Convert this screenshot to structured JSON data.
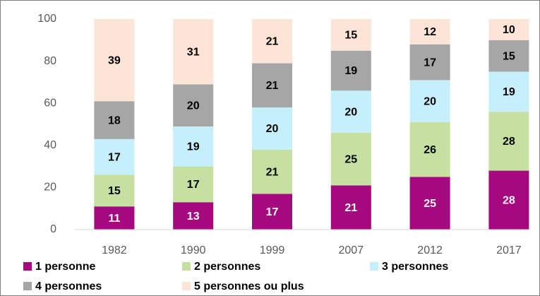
{
  "chart_data": {
    "type": "stacked_bar",
    "categories": [
      "1982",
      "1990",
      "1999",
      "2007",
      "2012",
      "2017"
    ],
    "series": [
      {
        "name": "1 personne",
        "color": "#a5087f",
        "values": [
          11,
          13,
          17,
          21,
          25,
          28
        ]
      },
      {
        "name": "2 personnes",
        "color": "#c5e0a0",
        "values": [
          15,
          17,
          21,
          25,
          26,
          28
        ]
      },
      {
        "name": "3 personnes",
        "color": "#c6effc",
        "values": [
          17,
          19,
          20,
          20,
          20,
          19
        ]
      },
      {
        "name": "4 personnes",
        "color": "#a6a6a6",
        "values": [
          18,
          20,
          21,
          19,
          17,
          15
        ]
      },
      {
        "name": "5 personnes ou plus",
        "color": "#fce4d6",
        "values": [
          39,
          31,
          21,
          15,
          12,
          10
        ]
      }
    ],
    "ylim": [
      0,
      100
    ],
    "yticks": [
      0,
      20,
      40,
      60,
      80,
      100
    ],
    "grid": false
  }
}
